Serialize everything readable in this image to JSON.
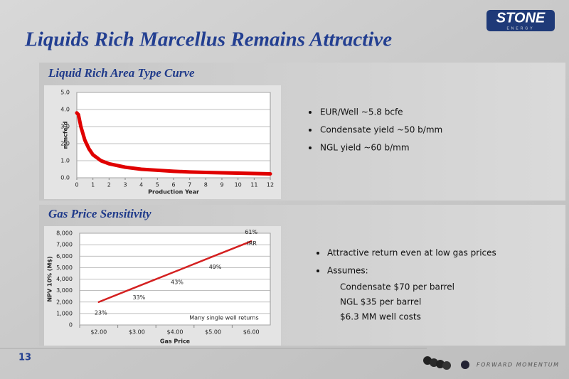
{
  "slide": {
    "title": "Liquids Rich Marcellus Remains Attractive",
    "logo": "STONE",
    "logo_sub": "ENERGY",
    "page_number": "13",
    "footer": "FORWARD MOMENTUM",
    "bullets_top": [
      "EUR/Well ~5.8 bcfe",
      "Condensate yield ~50 b/mm",
      "NGL yield ~60 b/mm"
    ],
    "bullets_bottom": [
      "Attractive return even at low gas prices",
      "Assumes:"
    ],
    "sub_bullets_bottom": [
      "Condensate $70 per barrel",
      "NGL $35 per barrel",
      "$6.3 MM well costs"
    ]
  },
  "chart_data": [
    {
      "type": "line",
      "title": "Liquid Rich Area Type Curve",
      "xlabel": "Production Year",
      "ylabel": "mmcfe/d",
      "x": [
        0,
        0.1,
        0.25,
        0.5,
        0.75,
        1,
        1.5,
        2,
        3,
        4,
        5,
        6,
        7,
        8,
        9,
        10,
        11,
        12
      ],
      "values": [
        3.8,
        3.7,
        3.0,
        2.2,
        1.7,
        1.35,
        1.0,
        0.82,
        0.62,
        0.5,
        0.44,
        0.38,
        0.34,
        0.31,
        0.29,
        0.27,
        0.25,
        0.23
      ],
      "color": "#e00000",
      "xlim": [
        0,
        12
      ],
      "xticks": [
        0,
        1,
        2,
        3,
        4,
        5,
        6,
        7,
        8,
        9,
        10,
        11,
        12
      ],
      "ylim": [
        0,
        5
      ],
      "yticks": [
        {
          "value": 0,
          "label": "0.0"
        },
        {
          "value": 1,
          "label": "1.0"
        },
        {
          "value": 2,
          "label": "2.0"
        },
        {
          "value": 3,
          "label": "3.0"
        },
        {
          "value": 4,
          "label": "4.0"
        },
        {
          "value": 5,
          "label": "5.0"
        }
      ],
      "grid": true
    },
    {
      "type": "line",
      "title": "Gas Price Sensitivity",
      "xlabel": "Gas Price",
      "ylabel": "NPV 10% (M$)",
      "categories": [
        "$2.00",
        "$3.00",
        "$4.00",
        "$5.00",
        "$6.00"
      ],
      "values": [
        2000,
        3330,
        4650,
        5980,
        7300
      ],
      "color": "#d42020",
      "point_labels": [
        "23%",
        "33%",
        "43%",
        "49%",
        "61%"
      ],
      "point_label_title": "IRR",
      "note": "Many single well returns",
      "ylim": [
        0,
        8000
      ],
      "yticks": [
        0,
        {
          "value": 1000,
          "label": "1,000"
        },
        {
          "value": 2000,
          "label": "2,000"
        },
        {
          "value": 3000,
          "label": "3,000"
        },
        {
          "value": 4000,
          "label": "4,000"
        },
        {
          "value": 5000,
          "label": "5,000"
        },
        {
          "value": 6000,
          "label": "6,000"
        },
        {
          "value": 7000,
          "label": "7,000"
        },
        {
          "value": 8000,
          "label": "8,000"
        }
      ],
      "grid": true
    }
  ]
}
